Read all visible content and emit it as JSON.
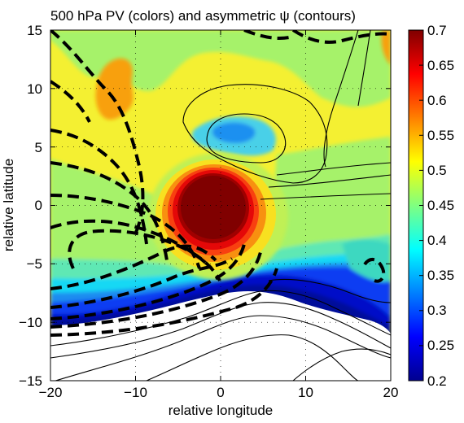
{
  "chart_data": {
    "type": "heatmap",
    "title": "500 hPa PV (colors) and asymmetric ψ (contours)",
    "xlabel": "relative longitude",
    "ylabel": "relative latitude",
    "xlim": [
      -20,
      20
    ],
    "ylim": [
      -15,
      15
    ],
    "x_ticks": [
      "−20",
      "−10",
      "0",
      "10",
      "20"
    ],
    "y_ticks": [
      "15",
      "10",
      "5",
      "0",
      "−5",
      "−10",
      "−15"
    ],
    "grid": true,
    "colorbar": {
      "range": [
        0.2,
        0.7
      ],
      "ticks": [
        "0.7",
        "0.65",
        "0.6",
        "0.55",
        "0.5",
        "0.45",
        "0.4",
        "0.35",
        "0.3",
        "0.25",
        "0.2"
      ],
      "colormap": "jet",
      "placement": "right"
    },
    "pv_features": [
      {
        "feature": "PV maximum (vortex core)",
        "center": [
          0,
          0
        ],
        "peak": 0.7
      },
      {
        "feature": "secondary orange patch",
        "center": [
          -14,
          10
        ],
        "value": 0.55
      },
      {
        "feature": "cyan/blue low-PV patch",
        "center": [
          3,
          6
        ],
        "value": 0.35
      },
      {
        "feature": "dark blue low-PV band",
        "latitude_range": [
          -10,
          -5
        ],
        "value": 0.25
      },
      {
        "feature": "white region (below color range)",
        "latitude_range": [
          -15,
          -10
        ],
        "value": 0.2
      }
    ],
    "contour_styles": {
      "positive": "thin solid black",
      "negative": "thick dashed black"
    }
  },
  "colors": {
    "jet_min": "#00008f",
    "jet_max": "#800000",
    "contour": "#000000"
  }
}
